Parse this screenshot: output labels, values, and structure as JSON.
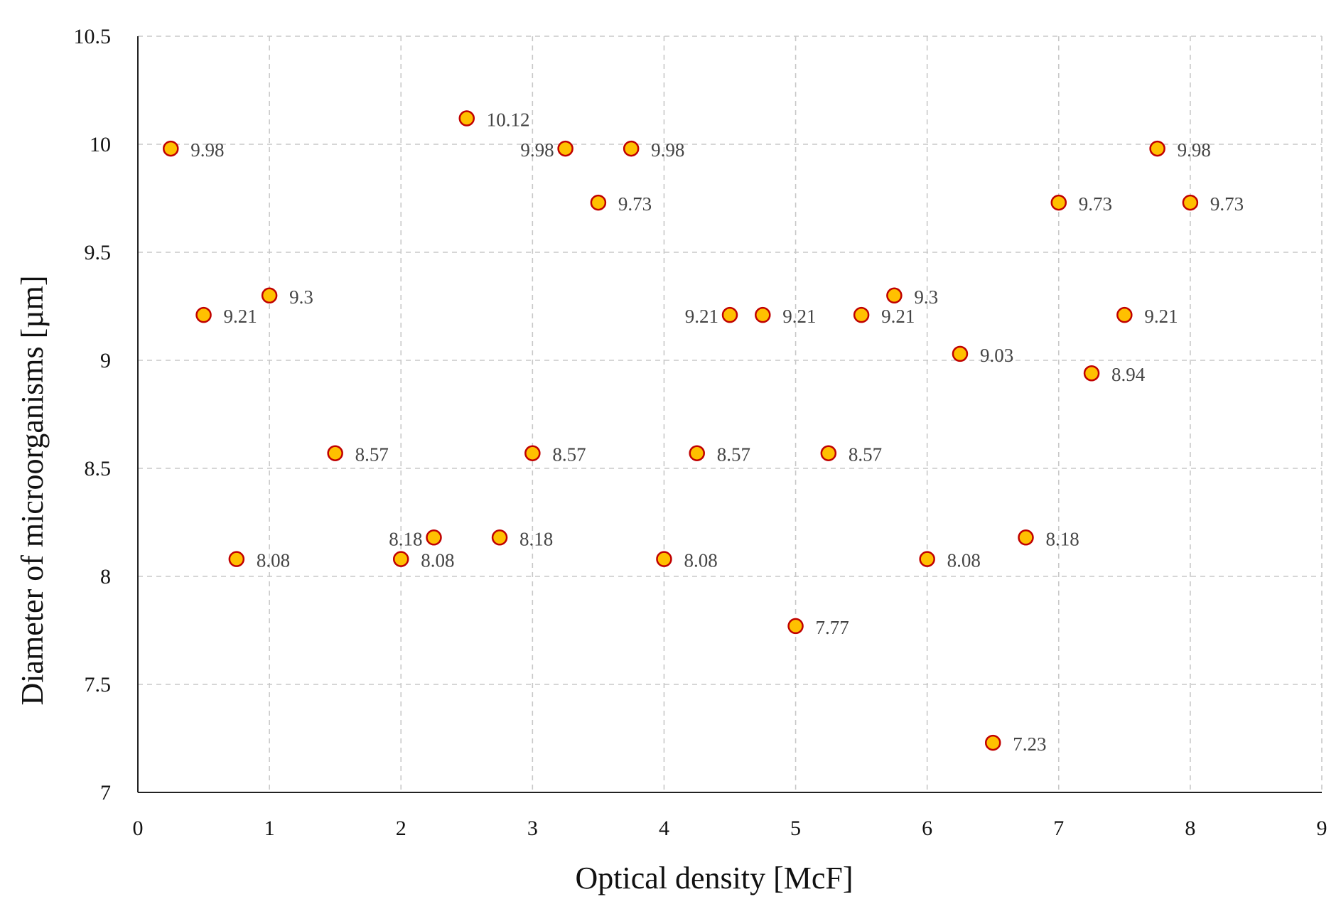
{
  "chart_data": {
    "type": "scatter",
    "title": "",
    "xlabel": "Optical density [McF]",
    "ylabel": "Diameter of microorganisms [µm]",
    "xlim": [
      0,
      9
    ],
    "ylim": [
      7,
      10.5
    ],
    "xticks": [
      "0",
      "1",
      "2",
      "3",
      "4",
      "5",
      "6",
      "7",
      "8",
      "9"
    ],
    "yticks": [
      "7",
      "7.5",
      "8",
      "8.5",
      "9",
      "9.5",
      "10",
      "10.5"
    ],
    "grid": true,
    "marker_fill": "#FFC000",
    "marker_edge": "#C00000",
    "series": [
      {
        "name": "Diameter",
        "points": [
          {
            "x": 0.25,
            "y": 9.98,
            "label": "9.98"
          },
          {
            "x": 0.5,
            "y": 9.21,
            "label": "9.21"
          },
          {
            "x": 0.75,
            "y": 8.08,
            "label": "8.08"
          },
          {
            "x": 1.0,
            "y": 9.3,
            "label": "9.3"
          },
          {
            "x": 1.5,
            "y": 8.57,
            "label": "8.57"
          },
          {
            "x": 2.0,
            "y": 8.08,
            "label": "8.08"
          },
          {
            "x": 2.25,
            "y": 8.18,
            "label": "8.18"
          },
          {
            "x": 2.5,
            "y": 10.12,
            "label": "10.12"
          },
          {
            "x": 2.75,
            "y": 8.18,
            "label": "8.18"
          },
          {
            "x": 3.0,
            "y": 8.57,
            "label": "8.57"
          },
          {
            "x": 3.25,
            "y": 9.98,
            "label": "9.98"
          },
          {
            "x": 3.5,
            "y": 9.73,
            "label": "9.73"
          },
          {
            "x": 3.75,
            "y": 9.98,
            "label": "9.98"
          },
          {
            "x": 4.0,
            "y": 8.08,
            "label": "8.08"
          },
          {
            "x": 4.25,
            "y": 8.57,
            "label": "8.57"
          },
          {
            "x": 4.5,
            "y": 9.21,
            "label": "9.21"
          },
          {
            "x": 4.75,
            "y": 9.21,
            "label": "9.21"
          },
          {
            "x": 5.0,
            "y": 7.77,
            "label": "7.77"
          },
          {
            "x": 5.25,
            "y": 8.57,
            "label": "8.57"
          },
          {
            "x": 5.5,
            "y": 9.21,
            "label": "9.21"
          },
          {
            "x": 5.75,
            "y": 9.3,
            "label": "9.3"
          },
          {
            "x": 6.0,
            "y": 8.08,
            "label": "8.08"
          },
          {
            "x": 6.25,
            "y": 9.03,
            "label": "9.03"
          },
          {
            "x": 6.5,
            "y": 7.23,
            "label": "7.23"
          },
          {
            "x": 6.75,
            "y": 8.18,
            "label": "8.18"
          },
          {
            "x": 7.0,
            "y": 9.73,
            "label": "9.73"
          },
          {
            "x": 7.25,
            "y": 8.94,
            "label": "8.94"
          },
          {
            "x": 7.5,
            "y": 9.21,
            "label": "9.21"
          },
          {
            "x": 7.75,
            "y": 9.98,
            "label": "9.98"
          },
          {
            "x": 8.0,
            "y": 9.73,
            "label": "9.73"
          }
        ]
      }
    ]
  }
}
